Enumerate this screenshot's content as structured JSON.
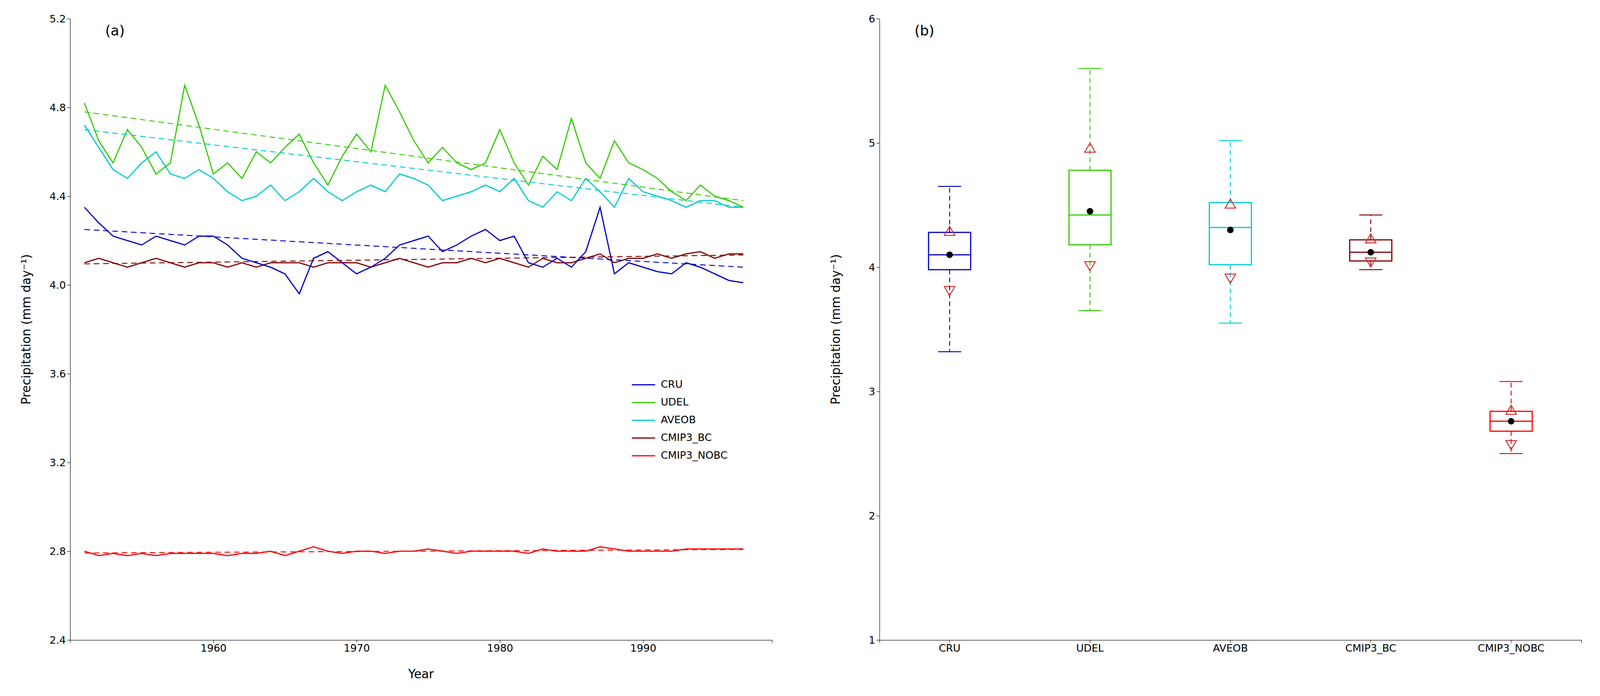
{
  "chart_data": [
    {
      "type": "line",
      "title": "(a)",
      "xlabel": "Year",
      "ylabel": "Precipitation (mm day⁻¹)",
      "x": [
        1951,
        1952,
        1953,
        1954,
        1955,
        1956,
        1957,
        1958,
        1959,
        1960,
        1961,
        1962,
        1963,
        1964,
        1965,
        1966,
        1967,
        1968,
        1969,
        1970,
        1971,
        1972,
        1973,
        1974,
        1975,
        1976,
        1977,
        1978,
        1979,
        1980,
        1981,
        1982,
        1983,
        1984,
        1985,
        1986,
        1987,
        1988,
        1989,
        1990,
        1991,
        1992,
        1993,
        1994,
        1995,
        1996,
        1997
      ],
      "xlim": [
        1950,
        1999
      ],
      "xticks": [
        1960,
        1970,
        1980,
        1990
      ],
      "ylim": [
        2.4,
        5.2
      ],
      "yticks": [
        2.4,
        2.8,
        3.2,
        3.6,
        {
          "value": 4.0,
          "label": "4.0"
        },
        4.4,
        4.8,
        5.2
      ],
      "legend": "lower right",
      "series": [
        {
          "name": "CRU",
          "color": "#0000cc",
          "values": [
            4.35,
            4.28,
            4.22,
            4.2,
            4.18,
            4.22,
            4.2,
            4.18,
            4.22,
            4.22,
            4.18,
            4.12,
            4.1,
            4.08,
            4.05,
            3.96,
            4.12,
            4.15,
            4.1,
            4.05,
            4.08,
            4.12,
            4.18,
            4.2,
            4.22,
            4.15,
            4.18,
            4.22,
            4.25,
            4.2,
            4.22,
            4.1,
            4.08,
            4.12,
            4.08,
            4.15,
            4.35,
            4.05,
            4.1,
            4.08,
            4.06,
            4.05,
            4.1,
            4.08,
            4.05,
            4.02,
            4.01
          ],
          "trend": [
            4.25,
            4.08
          ]
        },
        {
          "name": "UDEL",
          "color": "#33cc00",
          "values": [
            4.82,
            4.65,
            4.55,
            4.7,
            4.62,
            4.5,
            4.55,
            4.9,
            4.72,
            4.5,
            4.55,
            4.48,
            4.6,
            4.55,
            4.62,
            4.68,
            4.55,
            4.45,
            4.58,
            4.68,
            4.6,
            4.9,
            4.78,
            4.65,
            4.55,
            4.62,
            4.55,
            4.52,
            4.55,
            4.7,
            4.55,
            4.45,
            4.58,
            4.52,
            4.75,
            4.55,
            4.48,
            4.65,
            4.55,
            4.52,
            4.48,
            4.42,
            4.38,
            4.45,
            4.4,
            4.38,
            4.35
          ],
          "trend": [
            4.78,
            4.38
          ]
        },
        {
          "name": "AVEOB",
          "color": "#00cccc",
          "values": [
            4.72,
            4.62,
            4.52,
            4.48,
            4.55,
            4.6,
            4.5,
            4.48,
            4.52,
            4.48,
            4.42,
            4.38,
            4.4,
            4.45,
            4.38,
            4.42,
            4.48,
            4.42,
            4.38,
            4.42,
            4.45,
            4.42,
            4.5,
            4.48,
            4.45,
            4.38,
            4.4,
            4.42,
            4.45,
            4.42,
            4.48,
            4.38,
            4.35,
            4.42,
            4.38,
            4.48,
            4.42,
            4.35,
            4.48,
            4.42,
            4.4,
            4.38,
            4.35,
            4.38,
            4.38,
            4.35,
            4.35
          ],
          "trend": [
            4.7,
            4.35
          ]
        },
        {
          "name": "CMIP3_BC",
          "color": "#800000",
          "values": [
            4.1,
            4.12,
            4.1,
            4.08,
            4.1,
            4.12,
            4.1,
            4.08,
            4.1,
            4.1,
            4.08,
            4.1,
            4.08,
            4.1,
            4.1,
            4.1,
            4.08,
            4.1,
            4.1,
            4.1,
            4.08,
            4.1,
            4.12,
            4.1,
            4.08,
            4.1,
            4.1,
            4.12,
            4.1,
            4.12,
            4.1,
            4.08,
            4.12,
            4.1,
            4.1,
            4.12,
            4.14,
            4.1,
            4.12,
            4.12,
            4.14,
            4.12,
            4.14,
            4.15,
            4.12,
            4.14,
            4.14
          ],
          "trend": [
            4.095,
            4.135
          ]
        },
        {
          "name": "CMIP3_NOBC",
          "color": "#ff0000",
          "values": [
            2.8,
            2.78,
            2.79,
            2.78,
            2.79,
            2.78,
            2.79,
            2.79,
            2.79,
            2.79,
            2.78,
            2.79,
            2.79,
            2.8,
            2.78,
            2.8,
            2.82,
            2.8,
            2.79,
            2.8,
            2.8,
            2.79,
            2.8,
            2.8,
            2.81,
            2.8,
            2.79,
            2.8,
            2.8,
            2.8,
            2.8,
            2.79,
            2.81,
            2.8,
            2.8,
            2.8,
            2.82,
            2.81,
            2.8,
            2.8,
            2.8,
            2.8,
            2.81,
            2.81,
            2.81,
            2.81,
            2.81
          ],
          "trend": [
            2.792,
            2.808
          ]
        }
      ]
    },
    {
      "type": "box",
      "title": "(b)",
      "ylabel": "Precipitation (mm day⁻¹)",
      "ylim": [
        1.0,
        6.0
      ],
      "yticks": [
        1,
        2,
        3,
        4,
        5,
        6
      ],
      "categories": [
        "CRU",
        "UDEL",
        "AVEOB",
        "CMIP3_BC",
        "CMIP3_NOBC"
      ],
      "colors": [
        "#0000cc",
        "#33cc00",
        "#00cccc",
        "#800000",
        "#ff0000"
      ],
      "boxes": [
        {
          "q1": 3.98,
          "median": 4.1,
          "q3": 4.28,
          "mean": 4.1,
          "whislo": 3.32,
          "whishi": 4.65,
          "tri_up": 4.28,
          "tri_down": 3.82
        },
        {
          "q1": 4.18,
          "median": 4.42,
          "q3": 4.78,
          "mean": 4.45,
          "whislo": 3.65,
          "whishi": 5.6,
          "tri_up": 4.95,
          "tri_down": 4.02
        },
        {
          "q1": 4.02,
          "median": 4.32,
          "q3": 4.52,
          "mean": 4.3,
          "whislo": 3.55,
          "whishi": 5.02,
          "tri_up": 4.5,
          "tri_down": 3.92
        },
        {
          "q1": 4.05,
          "median": 4.12,
          "q3": 4.22,
          "mean": 4.12,
          "whislo": 3.98,
          "whishi": 4.42,
          "tri_up": 4.22,
          "tri_down": 4.05
        },
        {
          "q1": 2.68,
          "median": 2.76,
          "q3": 2.84,
          "mean": 2.76,
          "whislo": 2.5,
          "whishi": 3.08,
          "tri_up": 2.84,
          "tri_down": 2.58
        }
      ]
    }
  ]
}
